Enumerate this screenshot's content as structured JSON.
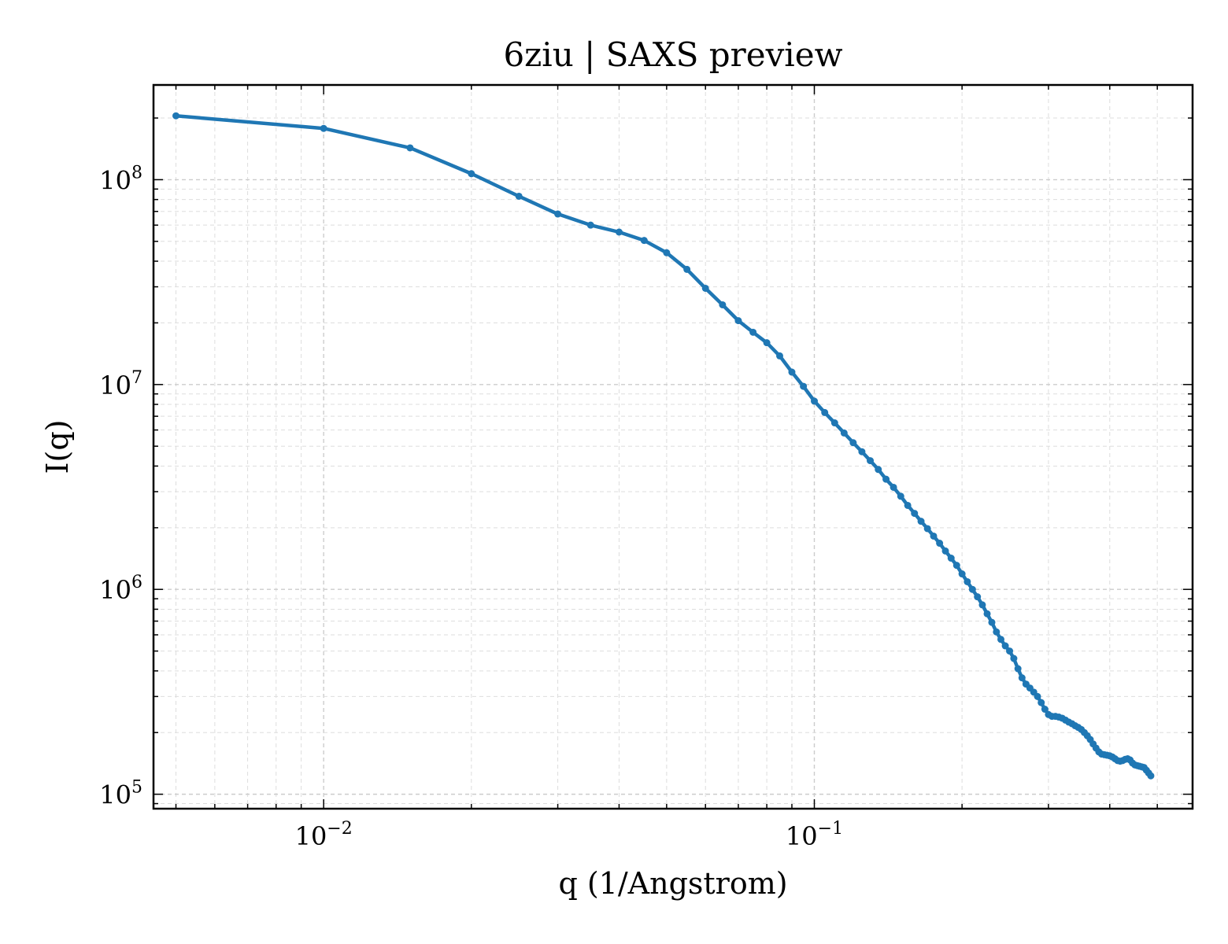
{
  "chart_data": {
    "type": "line",
    "title": "6ziu | SAXS preview",
    "xlabel": "q (1/Angstrom)",
    "ylabel": "I(q)",
    "xscale": "log",
    "yscale": "log",
    "xlim": [
      0.0045,
      0.59
    ],
    "ylim": [
      85000,
      290000000
    ],
    "grid": true,
    "legend": "none",
    "x_ticks": [
      {
        "value": 0.01,
        "base": "10",
        "exp": "−2"
      },
      {
        "value": 0.1,
        "base": "10",
        "exp": "−1"
      }
    ],
    "y_ticks": [
      {
        "value": 100000,
        "base": "10",
        "exp": "5"
      },
      {
        "value": 1000000,
        "base": "10",
        "exp": "6"
      },
      {
        "value": 10000000,
        "base": "10",
        "exp": "7"
      },
      {
        "value": 100000000,
        "base": "10",
        "exp": "8"
      }
    ],
    "series": [
      {
        "color": "#1f77b4",
        "points": [
          [
            0.005,
            205000000
          ],
          [
            0.01,
            178000000
          ],
          [
            0.015,
            143000000
          ],
          [
            0.02,
            107000000
          ],
          [
            0.025,
            83000000
          ],
          [
            0.03,
            68000000
          ],
          [
            0.035,
            60000000
          ],
          [
            0.04,
            55500000
          ],
          [
            0.045,
            50500000
          ],
          [
            0.05,
            44000000
          ],
          [
            0.055,
            36500000
          ],
          [
            0.06,
            29500000
          ],
          [
            0.065,
            24500000
          ],
          [
            0.07,
            20500000
          ],
          [
            0.075,
            18000000
          ],
          [
            0.08,
            16000000
          ],
          [
            0.085,
            13800000
          ],
          [
            0.09,
            11500000
          ],
          [
            0.095,
            9800000
          ],
          [
            0.1,
            8300000
          ],
          [
            0.105,
            7300000
          ],
          [
            0.11,
            6500000
          ],
          [
            0.115,
            5800000
          ],
          [
            0.12,
            5200000
          ],
          [
            0.125,
            4700000
          ],
          [
            0.13,
            4250000
          ],
          [
            0.135,
            3850000
          ],
          [
            0.14,
            3450000
          ],
          [
            0.145,
            3150000
          ],
          [
            0.15,
            2850000
          ],
          [
            0.155,
            2570000
          ],
          [
            0.16,
            2350000
          ],
          [
            0.165,
            2150000
          ],
          [
            0.17,
            1980000
          ],
          [
            0.175,
            1820000
          ],
          [
            0.18,
            1680000
          ],
          [
            0.185,
            1540000
          ],
          [
            0.19,
            1420000
          ],
          [
            0.195,
            1310000
          ],
          [
            0.2,
            1190000
          ],
          [
            0.205,
            1090000
          ],
          [
            0.21,
            1000000
          ],
          [
            0.215,
            920000
          ],
          [
            0.22,
            840000
          ],
          [
            0.225,
            760000
          ],
          [
            0.23,
            690000
          ],
          [
            0.235,
            620000
          ],
          [
            0.24,
            570000
          ],
          [
            0.245,
            530000
          ],
          [
            0.25,
            500000
          ],
          [
            0.255,
            460000
          ],
          [
            0.26,
            410000
          ],
          [
            0.265,
            370000
          ],
          [
            0.27,
            345000
          ],
          [
            0.275,
            330000
          ],
          [
            0.28,
            315000
          ],
          [
            0.285,
            300000
          ],
          [
            0.29,
            280000
          ],
          [
            0.295,
            260000
          ],
          [
            0.3,
            245000
          ],
          [
            0.305,
            240000
          ],
          [
            0.31,
            240000
          ],
          [
            0.315,
            238000
          ],
          [
            0.32,
            235000
          ],
          [
            0.325,
            230000
          ],
          [
            0.33,
            225000
          ],
          [
            0.335,
            221000
          ],
          [
            0.34,
            216000
          ],
          [
            0.345,
            212000
          ],
          [
            0.35,
            207000
          ],
          [
            0.355,
            200000
          ],
          [
            0.36,
            193000
          ],
          [
            0.365,
            185000
          ],
          [
            0.37,
            176000
          ],
          [
            0.375,
            168000
          ],
          [
            0.38,
            161000
          ],
          [
            0.385,
            157000
          ],
          [
            0.39,
            156000
          ],
          [
            0.395,
            155000
          ],
          [
            0.4,
            154000
          ],
          [
            0.405,
            152000
          ],
          [
            0.41,
            149000
          ],
          [
            0.415,
            146000
          ],
          [
            0.42,
            145000
          ],
          [
            0.425,
            146000
          ],
          [
            0.43,
            148000
          ],
          [
            0.435,
            149000
          ],
          [
            0.44,
            147000
          ],
          [
            0.445,
            142000
          ],
          [
            0.45,
            139000
          ],
          [
            0.455,
            138000
          ],
          [
            0.46,
            137000
          ],
          [
            0.465,
            136000
          ],
          [
            0.47,
            135000
          ],
          [
            0.475,
            131000
          ],
          [
            0.48,
            127000
          ],
          [
            0.485,
            123000
          ]
        ]
      }
    ]
  }
}
